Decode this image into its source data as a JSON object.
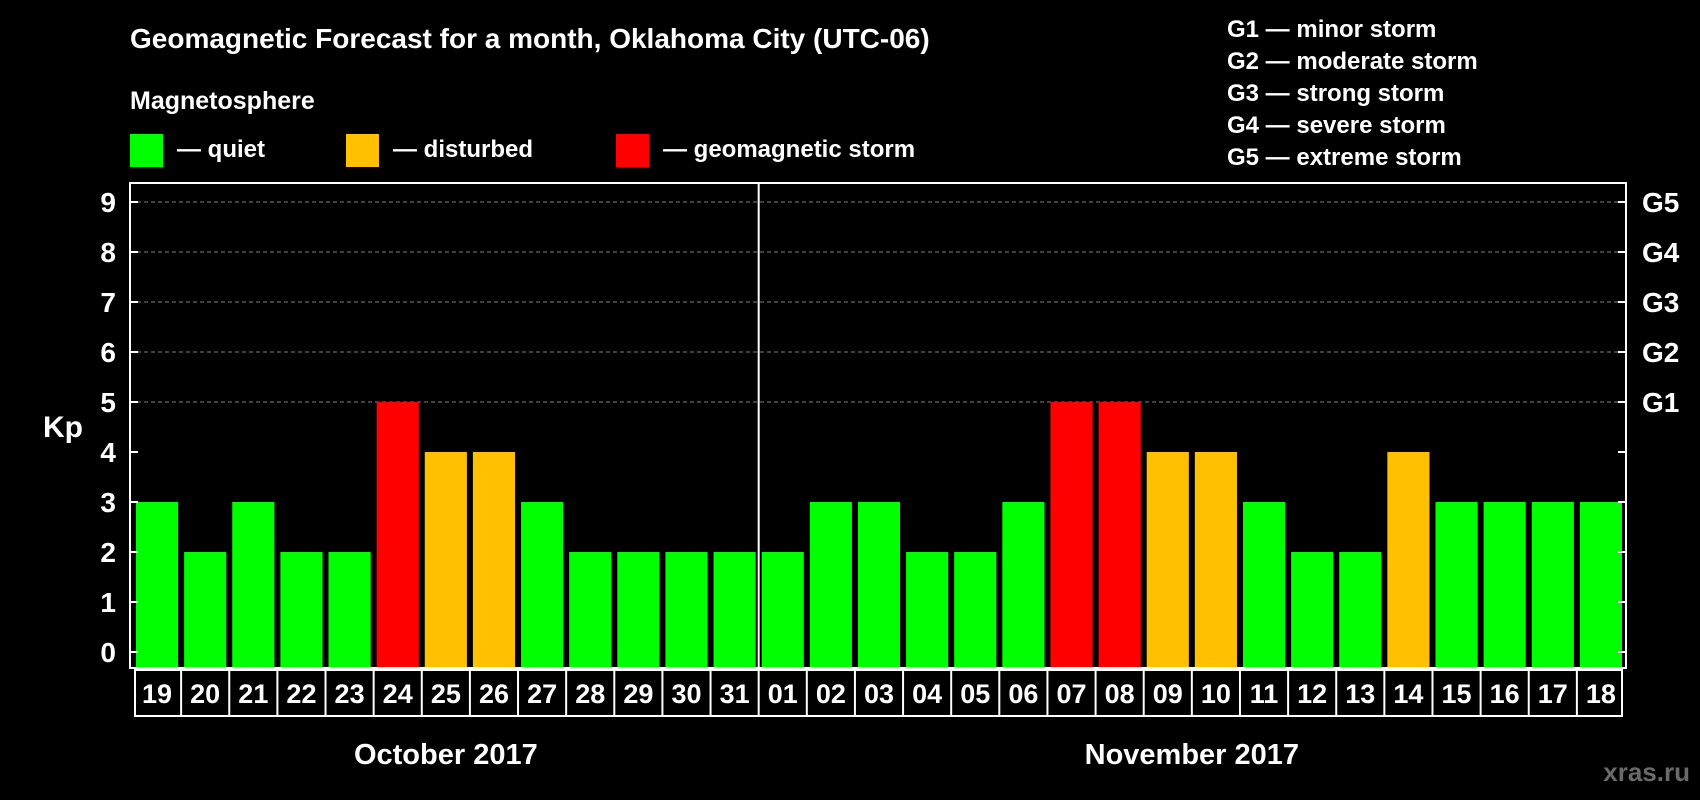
{
  "colors": {
    "background": "#000000",
    "quiet": "#00ff00",
    "disturbed": "#ffc000",
    "storm": "#ff0000",
    "text": "#ffffff",
    "grid": "#808080"
  },
  "legend": {
    "heading": "Magnetosphere",
    "items": [
      {
        "key": "quiet",
        "label": "— quiet"
      },
      {
        "key": "disturbed",
        "label": "— disturbed"
      },
      {
        "key": "storm",
        "label": "— geomagnetic storm"
      }
    ],
    "storm_scale": [
      "G1 — minor storm",
      "G2 — moderate storm",
      "G3 — strong storm",
      "G4 — severe storm",
      "G5 — extreme storm"
    ]
  },
  "watermark": "xras.ru",
  "chart_data": {
    "type": "bar",
    "title": "Geomagnetic Forecast for a month, Oklahoma City (UTC-06)",
    "ylabel": "Kp",
    "xlabel": "",
    "ylim": [
      0,
      9
    ],
    "yticks": [
      "0",
      "1",
      "2",
      "3",
      "4",
      "5",
      "6",
      "7",
      "8",
      "9"
    ],
    "grid": "dashed lines at Kp 5 to 9",
    "right_axis": [
      {
        "kp": 5,
        "label": "G1"
      },
      {
        "kp": 6,
        "label": "G2"
      },
      {
        "kp": 7,
        "label": "G3"
      },
      {
        "kp": 8,
        "label": "G4"
      },
      {
        "kp": 9,
        "label": "G5"
      }
    ],
    "months": [
      {
        "label": "October 2017",
        "count": 13
      },
      {
        "label": "November 2017",
        "count": 18
      }
    ],
    "categories": [
      "19",
      "20",
      "21",
      "22",
      "23",
      "24",
      "25",
      "26",
      "27",
      "28",
      "29",
      "30",
      "31",
      "01",
      "02",
      "03",
      "04",
      "05",
      "06",
      "07",
      "08",
      "09",
      "10",
      "11",
      "12",
      "13",
      "14",
      "15",
      "16",
      "17",
      "18"
    ],
    "values": [
      3,
      2,
      3,
      2,
      2,
      5,
      4,
      4,
      3,
      2,
      2,
      2,
      2,
      2,
      3,
      3,
      2,
      2,
      3,
      5,
      5,
      4,
      4,
      3,
      2,
      2,
      4,
      3,
      3,
      3,
      3
    ],
    "status": [
      "quiet",
      "quiet",
      "quiet",
      "quiet",
      "quiet",
      "storm",
      "disturbed",
      "disturbed",
      "quiet",
      "quiet",
      "quiet",
      "quiet",
      "quiet",
      "quiet",
      "quiet",
      "quiet",
      "quiet",
      "quiet",
      "quiet",
      "storm",
      "storm",
      "disturbed",
      "disturbed",
      "quiet",
      "quiet",
      "quiet",
      "disturbed",
      "quiet",
      "quiet",
      "quiet",
      "quiet"
    ]
  }
}
